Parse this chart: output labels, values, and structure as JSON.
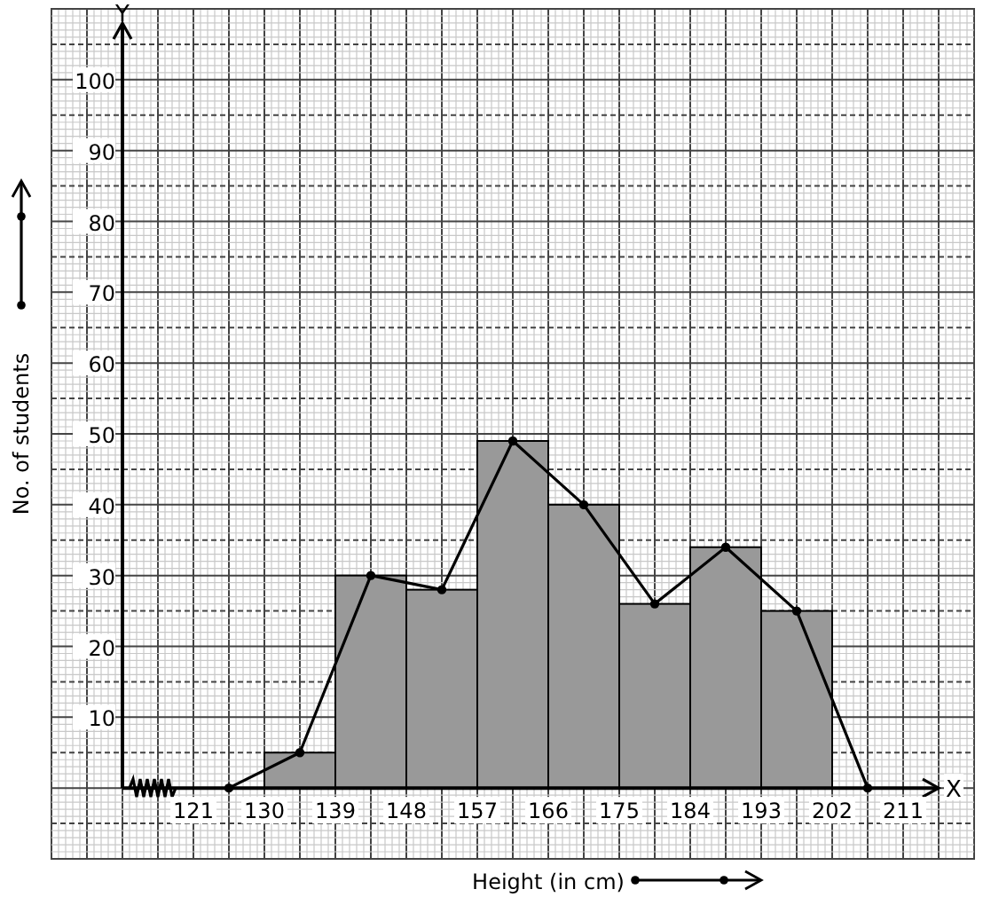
{
  "chart_data": {
    "type": "histogram",
    "xlabel": "Height (in cm)",
    "ylabel": "No. of students",
    "annotations": [
      "X",
      "Y"
    ],
    "bins": [
      130,
      139,
      148,
      157,
      166,
      175,
      184,
      193,
      202
    ],
    "values": [
      5,
      30,
      28,
      49,
      40,
      26,
      34,
      25
    ],
    "color": "#999999",
    "series": [
      {
        "type": "line",
        "x": [
          125.5,
          134.5,
          143.5,
          152.5,
          161.5,
          170.5,
          179.5,
          188.5,
          197.5,
          206.5
        ],
        "values": [
          0,
          5,
          30,
          28,
          49,
          40,
          26,
          34,
          25,
          0
        ],
        "color": "#000000"
      }
    ],
    "xlim": [
      103,
      220
    ],
    "ylim": [
      -10,
      110
    ],
    "xticks": [
      121,
      130,
      139,
      148,
      157,
      166,
      175,
      184,
      193,
      202,
      211
    ],
    "yticks": [
      10,
      20,
      30,
      40,
      50,
      60,
      70,
      80,
      90,
      100
    ],
    "grid": true,
    "marker": "circle",
    "line_style": "solid"
  }
}
